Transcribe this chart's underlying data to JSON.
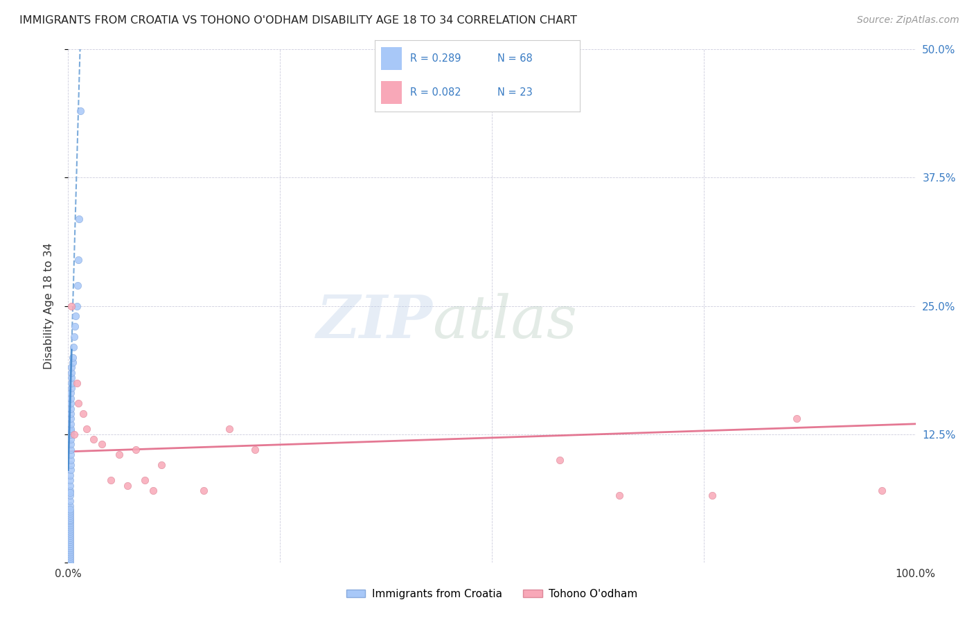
{
  "title": "IMMIGRANTS FROM CROATIA VS TOHONO O'ODHAM DISABILITY AGE 18 TO 34 CORRELATION CHART",
  "source": "Source: ZipAtlas.com",
  "ylabel": "Disability Age 18 to 34",
  "xlim": [
    0,
    1.0
  ],
  "ylim": [
    0,
    0.5
  ],
  "croatia_color": "#a8c8f8",
  "croatia_edge_color": "#88aadd",
  "tohono_color": "#f8a8b8",
  "tohono_edge_color": "#dd8899",
  "trend_croatia_color": "#4488cc",
  "trend_tohono_color": "#e06080",
  "legend_label1": "Immigrants from Croatia",
  "legend_label2": "Tohono O'odham",
  "croatia_x": [
    0.002,
    0.002,
    0.002,
    0.002,
    0.002,
    0.002,
    0.002,
    0.002,
    0.002,
    0.002,
    0.002,
    0.002,
    0.002,
    0.002,
    0.002,
    0.002,
    0.002,
    0.002,
    0.002,
    0.002,
    0.002,
    0.002,
    0.002,
    0.002,
    0.002,
    0.002,
    0.002,
    0.002,
    0.002,
    0.002,
    0.002,
    0.002,
    0.002,
    0.003,
    0.003,
    0.003,
    0.003,
    0.003,
    0.003,
    0.003,
    0.003,
    0.003,
    0.003,
    0.003,
    0.003,
    0.003,
    0.003,
    0.003,
    0.003,
    0.003,
    0.004,
    0.004,
    0.004,
    0.004,
    0.004,
    0.005,
    0.005,
    0.006,
    0.007,
    0.008,
    0.009,
    0.01,
    0.011,
    0.012,
    0.013,
    0.014,
    0.002,
    0.002
  ],
  "croatia_y": [
    0.0,
    0.002,
    0.004,
    0.006,
    0.008,
    0.01,
    0.012,
    0.014,
    0.016,
    0.018,
    0.02,
    0.022,
    0.024,
    0.026,
    0.028,
    0.03,
    0.032,
    0.034,
    0.036,
    0.038,
    0.04,
    0.042,
    0.044,
    0.046,
    0.048,
    0.05,
    0.055,
    0.06,
    0.065,
    0.07,
    0.075,
    0.08,
    0.085,
    0.09,
    0.095,
    0.1,
    0.105,
    0.11,
    0.115,
    0.12,
    0.125,
    0.128,
    0.13,
    0.135,
    0.14,
    0.145,
    0.15,
    0.155,
    0.16,
    0.165,
    0.17,
    0.175,
    0.18,
    0.185,
    0.19,
    0.195,
    0.2,
    0.21,
    0.22,
    0.23,
    0.24,
    0.25,
    0.27,
    0.295,
    0.335,
    0.44,
    0.052,
    0.068
  ],
  "tohono_x": [
    0.004,
    0.007,
    0.01,
    0.012,
    0.018,
    0.022,
    0.03,
    0.04,
    0.05,
    0.06,
    0.07,
    0.08,
    0.09,
    0.1,
    0.11,
    0.16,
    0.19,
    0.22,
    0.58,
    0.65,
    0.76,
    0.86,
    0.96
  ],
  "tohono_y": [
    0.25,
    0.125,
    0.175,
    0.155,
    0.145,
    0.13,
    0.12,
    0.115,
    0.08,
    0.105,
    0.075,
    0.11,
    0.08,
    0.07,
    0.095,
    0.07,
    0.13,
    0.11,
    0.1,
    0.065,
    0.065,
    0.14,
    0.07
  ],
  "trend_cr_x0": 0.0,
  "trend_cr_y0": 0.09,
  "trend_cr_x1": 0.014,
  "trend_cr_y1": 0.5,
  "trend_to_x0": 0.0,
  "trend_to_y0": 0.108,
  "trend_to_x1": 1.0,
  "trend_to_y1": 0.135
}
